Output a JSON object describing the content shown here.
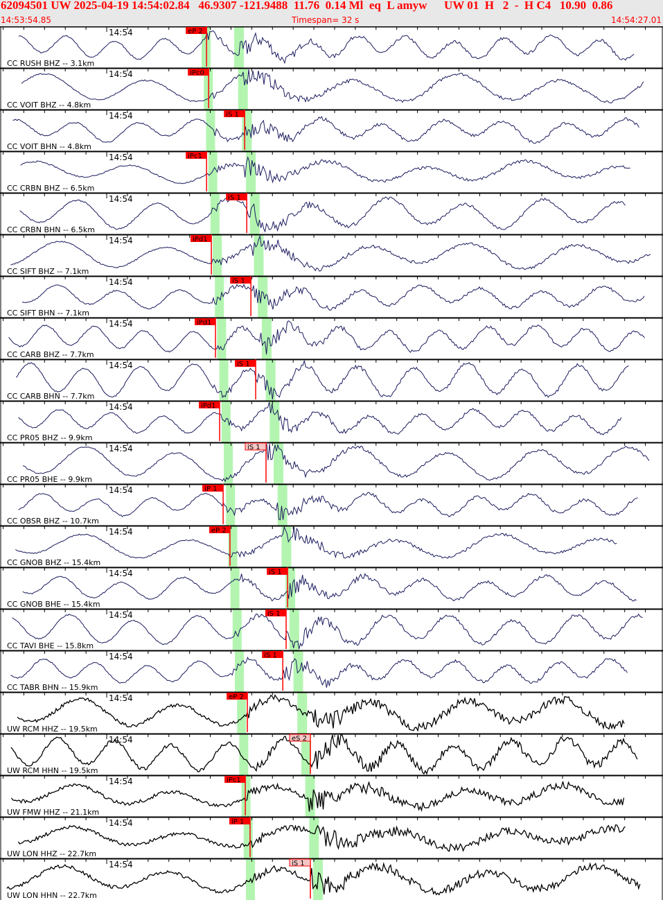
{
  "header": {
    "event_line": "62094501 UW 2025-04-19 14:54:02.84   46.9307 -121.9488  11.76  0.14 Ml  eq  L amyw",
    "quality_line": "UW 01  H   2  -  H C4   10.90  0.86",
    "start_time": "14:53:54.85",
    "timespan": "Timespan=  32 s",
    "end_time": "14:54:27.01"
  },
  "colors": {
    "header_text": "#ff0000",
    "header_bg": "#e8e8e8",
    "cc_trace": "#1a1a5e",
    "uw_trace": "#000000",
    "pick": "#ff0000",
    "pick_light": "#f5c6c6",
    "window": "#b3f5b0"
  },
  "chart_data": {
    "type": "line",
    "title": "",
    "x_axis": {
      "start": "14:53:54.85",
      "end": "14:54:27.01",
      "span_s": 32,
      "tick_interval_s": 1,
      "minute_label": "14:54"
    },
    "traces": [
      {
        "label": "CC RUSH BHZ -- 3.1km",
        "net": "CC",
        "pick": {
          "label": "eP 2",
          "time": "14:54:04.82",
          "style": "solid"
        }
      },
      {
        "label": "CC VOIT BHZ -- 4.8km",
        "net": "CC",
        "pick": {
          "label": "iPc0",
          "time": "14:54:04.92",
          "style": "solid"
        }
      },
      {
        "label": "CC VOIT BHN -- 4.8km",
        "net": "CC",
        "pick": {
          "label": "iS 1",
          "time": "14:54:06.66",
          "style": "solid"
        }
      },
      {
        "label": "CC CRBN BHZ -- 6.5km",
        "net": "CC",
        "pick": {
          "label": "iPc1",
          "time": "14:54:04.82",
          "style": "solid"
        }
      },
      {
        "label": "CC CRBN BHN -- 6.5km",
        "net": "CC",
        "pick": {
          "label": "iS 1",
          "time": "14:54:06.76",
          "style": "solid"
        }
      },
      {
        "label": "CC SIFT BHZ -- 7.1km",
        "net": "CC",
        "pick": {
          "label": "iPd1",
          "time": "14:54:05.05",
          "style": "solid"
        }
      },
      {
        "label": "CC SIFT BHN -- 7.1km",
        "net": "CC",
        "pick": {
          "label": "iS 1",
          "time": "14:54:06.96",
          "style": "solid"
        }
      },
      {
        "label": "CC CARB BHZ -- 7.7km",
        "net": "CC",
        "pick": {
          "label": "iPd1",
          "time": "14:54:05.25",
          "style": "solid"
        }
      },
      {
        "label": "CC CARB BHN -- 7.7km",
        "net": "CC",
        "pick": {
          "label": "iS 1",
          "time": "14:54:07.19",
          "style": "solid"
        }
      },
      {
        "label": "CC PR05 BHZ -- 9.9km",
        "net": "CC",
        "pick": {
          "label": "iPd1",
          "time": "14:54:05.45",
          "style": "solid"
        }
      },
      {
        "label": "CC PR05 BHE -- 9.9km",
        "net": "CC",
        "pick": {
          "label": "iS 1",
          "time": "14:54:07.69",
          "style": "light"
        }
      },
      {
        "label": "CC OBSR BHZ -- 10.7km",
        "net": "CC",
        "pick": {
          "label": "iP 1",
          "time": "14:54:05.62",
          "style": "solid"
        }
      },
      {
        "label": "CC GNOB BHZ -- 15.4km",
        "net": "CC",
        "pick": {
          "label": "eP 2",
          "time": "14:54:05.95",
          "style": "solid"
        }
      },
      {
        "label": "CC GNOB BHE -- 15.4km",
        "net": "CC",
        "pick": {
          "label": "iS 1",
          "time": "14:54:08.73",
          "style": "solid"
        }
      },
      {
        "label": "CC TAVI BHE -- 15.8km",
        "net": "CC",
        "pick": {
          "label": "iS 1",
          "time": "14:54:08.66",
          "style": "solid"
        }
      },
      {
        "label": "CC TABR BHN -- 15.9km",
        "net": "CC",
        "pick": {
          "label": "iS 1",
          "time": "14:54:08.50",
          "style": "solid"
        }
      },
      {
        "label": "UW RCM HHZ -- 19.5km",
        "net": "UW",
        "pick": {
          "label": "eP 2",
          "time": "14:54:06.79",
          "style": "solid"
        }
      },
      {
        "label": "UW RCM HHN -- 19.5km",
        "net": "UW",
        "pick": {
          "label": "eS 2",
          "time": "14:54:09.83",
          "style": "light"
        }
      },
      {
        "label": "UW FMW HHZ -- 21.1km",
        "net": "UW",
        "pick": {
          "label": "iPc1",
          "time": "14:54:06.69",
          "style": "solid"
        }
      },
      {
        "label": "UW LON HHZ -- 22.7km",
        "net": "UW",
        "pick": {
          "label": "iP 1",
          "time": "14:54:06.92",
          "style": "solid"
        }
      },
      {
        "label": "UW LON HHN -- 22.7km",
        "net": "UW",
        "pick": {
          "label": "iS 1",
          "time": "14:54:09.83",
          "style": "light"
        }
      }
    ]
  }
}
